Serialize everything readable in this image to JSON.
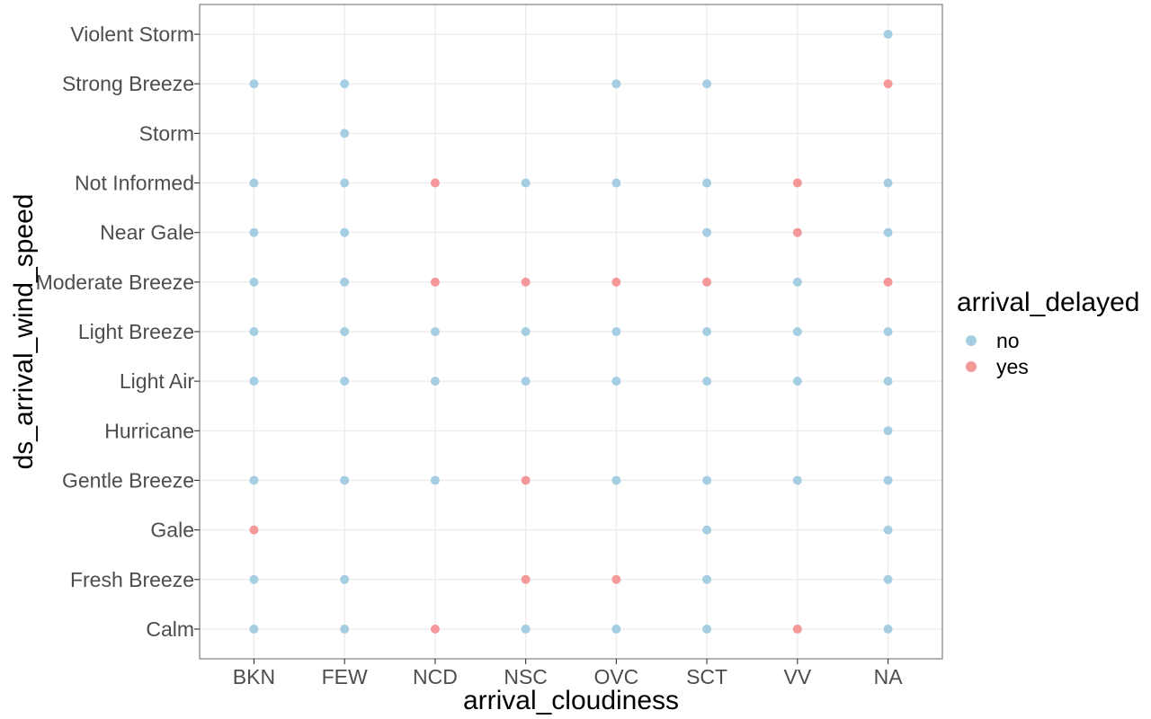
{
  "chart_data": {
    "type": "scatter",
    "title": "",
    "xlabel": "arrival_cloudiness",
    "ylabel": "ds_arrival_wind_speed",
    "categories_x": [
      "BKN",
      "FEW",
      "NCD",
      "NSC",
      "OVC",
      "SCT",
      "VV",
      "NA"
    ],
    "categories_y": [
      "Calm",
      "Fresh Breeze",
      "Gale",
      "Gentle Breeze",
      "Hurricane",
      "Light Air",
      "Light Breeze",
      "Moderate Breeze",
      "Near Gale",
      "Not Informed",
      "Storm",
      "Strong Breeze",
      "Violent Storm"
    ],
    "grid": true,
    "legend": {
      "title": "arrival_delayed",
      "placement": "right",
      "entries": [
        {
          "name": "no",
          "color": "#a6cee3"
        },
        {
          "name": "yes",
          "color": "#f4989a"
        }
      ]
    },
    "series": [
      {
        "name": "no",
        "color": "#a6cee3",
        "points": [
          {
            "x": "NA",
            "y": "Violent Storm"
          },
          {
            "x": "BKN",
            "y": "Strong Breeze"
          },
          {
            "x": "FEW",
            "y": "Strong Breeze"
          },
          {
            "x": "OVC",
            "y": "Strong Breeze"
          },
          {
            "x": "SCT",
            "y": "Strong Breeze"
          },
          {
            "x": "FEW",
            "y": "Storm"
          },
          {
            "x": "BKN",
            "y": "Not Informed"
          },
          {
            "x": "FEW",
            "y": "Not Informed"
          },
          {
            "x": "NSC",
            "y": "Not Informed"
          },
          {
            "x": "OVC",
            "y": "Not Informed"
          },
          {
            "x": "SCT",
            "y": "Not Informed"
          },
          {
            "x": "NA",
            "y": "Not Informed"
          },
          {
            "x": "BKN",
            "y": "Near Gale"
          },
          {
            "x": "FEW",
            "y": "Near Gale"
          },
          {
            "x": "SCT",
            "y": "Near Gale"
          },
          {
            "x": "NA",
            "y": "Near Gale"
          },
          {
            "x": "BKN",
            "y": "Moderate Breeze"
          },
          {
            "x": "FEW",
            "y": "Moderate Breeze"
          },
          {
            "x": "VV",
            "y": "Moderate Breeze"
          },
          {
            "x": "BKN",
            "y": "Light Breeze"
          },
          {
            "x": "FEW",
            "y": "Light Breeze"
          },
          {
            "x": "NCD",
            "y": "Light Breeze"
          },
          {
            "x": "NSC",
            "y": "Light Breeze"
          },
          {
            "x": "OVC",
            "y": "Light Breeze"
          },
          {
            "x": "SCT",
            "y": "Light Breeze"
          },
          {
            "x": "VV",
            "y": "Light Breeze"
          },
          {
            "x": "NA",
            "y": "Light Breeze"
          },
          {
            "x": "BKN",
            "y": "Light Air"
          },
          {
            "x": "FEW",
            "y": "Light Air"
          },
          {
            "x": "NCD",
            "y": "Light Air"
          },
          {
            "x": "NSC",
            "y": "Light Air"
          },
          {
            "x": "OVC",
            "y": "Light Air"
          },
          {
            "x": "SCT",
            "y": "Light Air"
          },
          {
            "x": "VV",
            "y": "Light Air"
          },
          {
            "x": "NA",
            "y": "Light Air"
          },
          {
            "x": "NA",
            "y": "Hurricane"
          },
          {
            "x": "BKN",
            "y": "Gentle Breeze"
          },
          {
            "x": "FEW",
            "y": "Gentle Breeze"
          },
          {
            "x": "NCD",
            "y": "Gentle Breeze"
          },
          {
            "x": "OVC",
            "y": "Gentle Breeze"
          },
          {
            "x": "SCT",
            "y": "Gentle Breeze"
          },
          {
            "x": "VV",
            "y": "Gentle Breeze"
          },
          {
            "x": "NA",
            "y": "Gentle Breeze"
          },
          {
            "x": "SCT",
            "y": "Gale"
          },
          {
            "x": "NA",
            "y": "Gale"
          },
          {
            "x": "BKN",
            "y": "Fresh Breeze"
          },
          {
            "x": "FEW",
            "y": "Fresh Breeze"
          },
          {
            "x": "SCT",
            "y": "Fresh Breeze"
          },
          {
            "x": "NA",
            "y": "Fresh Breeze"
          },
          {
            "x": "BKN",
            "y": "Calm"
          },
          {
            "x": "FEW",
            "y": "Calm"
          },
          {
            "x": "NSC",
            "y": "Calm"
          },
          {
            "x": "OVC",
            "y": "Calm"
          },
          {
            "x": "SCT",
            "y": "Calm"
          },
          {
            "x": "NA",
            "y": "Calm"
          }
        ]
      },
      {
        "name": "yes",
        "color": "#f4989a",
        "points": [
          {
            "x": "NA",
            "y": "Strong Breeze"
          },
          {
            "x": "NCD",
            "y": "Not Informed"
          },
          {
            "x": "VV",
            "y": "Not Informed"
          },
          {
            "x": "VV",
            "y": "Near Gale"
          },
          {
            "x": "NCD",
            "y": "Moderate Breeze"
          },
          {
            "x": "NSC",
            "y": "Moderate Breeze"
          },
          {
            "x": "OVC",
            "y": "Moderate Breeze"
          },
          {
            "x": "SCT",
            "y": "Moderate Breeze"
          },
          {
            "x": "NA",
            "y": "Moderate Breeze"
          },
          {
            "x": "NSC",
            "y": "Gentle Breeze"
          },
          {
            "x": "BKN",
            "y": "Gale"
          },
          {
            "x": "NSC",
            "y": "Fresh Breeze"
          },
          {
            "x": "OVC",
            "y": "Fresh Breeze"
          },
          {
            "x": "NCD",
            "y": "Calm"
          },
          {
            "x": "VV",
            "y": "Calm"
          }
        ]
      }
    ]
  }
}
